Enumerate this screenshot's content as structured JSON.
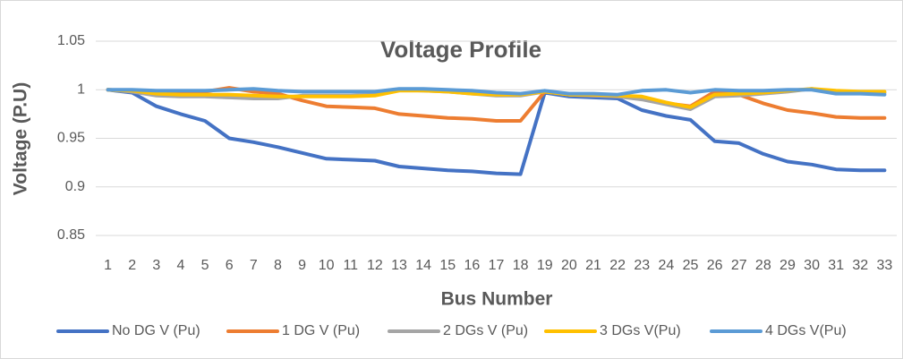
{
  "chart_data": {
    "type": "line",
    "title": "Voltage Profile",
    "x_label": "Bus Number",
    "y_label": "Voltage (P.U)",
    "categories": [
      "1",
      "2",
      "3",
      "4",
      "5",
      "6",
      "7",
      "8",
      "9",
      "10",
      "11",
      "12",
      "13",
      "14",
      "15",
      "16",
      "17",
      "18",
      "19",
      "20",
      "21",
      "22",
      "23",
      "24",
      "25",
      "26",
      "27",
      "28",
      "29",
      "30",
      "31",
      "32",
      "33"
    ],
    "series": [
      {
        "name": "No DG V (Pu)",
        "color": "#4472c4",
        "values": [
          1,
          0.997,
          0.983,
          0.975,
          0.968,
          0.95,
          0.946,
          0.941,
          0.935,
          0.929,
          0.928,
          0.927,
          0.921,
          0.919,
          0.917,
          0.916,
          0.914,
          0.913,
          0.997,
          0.993,
          0.992,
          0.991,
          0.979,
          0.973,
          0.969,
          0.947,
          0.945,
          0.934,
          0.926,
          0.923,
          0.918,
          0.917,
          0.917
        ]
      },
      {
        "name": "1 DG V (Pu)",
        "color": "#ed7d31",
        "values": [
          1,
          0.999,
          0.997,
          0.997,
          0.998,
          1.002,
          0.998,
          0.996,
          0.989,
          0.983,
          0.982,
          0.981,
          0.975,
          0.973,
          0.971,
          0.97,
          0.968,
          0.968,
          0.998,
          0.995,
          0.994,
          0.993,
          0.992,
          0.986,
          0.983,
          0.998,
          0.995,
          0.986,
          0.979,
          0.976,
          0.972,
          0.971,
          0.971
        ]
      },
      {
        "name": "2 DGs V (Pu)",
        "color": "#a5a5a5",
        "values": [
          1,
          0.998,
          0.994,
          0.993,
          0.993,
          0.992,
          0.991,
          0.991,
          0.994,
          0.994,
          0.994,
          0.995,
          1.0,
          0.999,
          0.998,
          0.996,
          0.994,
          0.994,
          0.998,
          0.995,
          0.994,
          0.993,
          0.99,
          0.985,
          0.98,
          0.993,
          0.994,
          0.996,
          0.998,
          1.001,
          0.997,
          0.997,
          0.997
        ]
      },
      {
        "name": "3 DGs V(Pu)",
        "color": "#ffc000",
        "values": [
          1,
          0.999,
          0.996,
          0.995,
          0.995,
          0.995,
          0.994,
          0.993,
          0.993,
          0.993,
          0.993,
          0.994,
          0.999,
          0.999,
          0.998,
          0.996,
          0.995,
          0.995,
          0.998,
          0.995,
          0.995,
          0.994,
          0.993,
          0.987,
          0.982,
          0.995,
          0.996,
          0.997,
          0.999,
          1.001,
          0.999,
          0.998,
          0.998
        ]
      },
      {
        "name": "4 DGs V(Pu)",
        "color": "#5b9bd5",
        "values": [
          1,
          1,
          0.999,
          0.999,
          0.999,
          1.0,
          1.001,
          0.999,
          0.998,
          0.998,
          0.998,
          0.998,
          1.001,
          1.001,
          1.0,
          0.999,
          0.997,
          0.996,
          0.999,
          0.996,
          0.996,
          0.995,
          0.999,
          1.0,
          0.997,
          1.0,
          0.999,
          0.999,
          1.0,
          1.0,
          0.996,
          0.996,
          0.995
        ]
      }
    ],
    "ylim": [
      0.85,
      1.05
    ],
    "yticks": [
      0.85,
      0.9,
      0.95,
      1,
      1.05
    ],
    "grid": true,
    "legend": "bottom"
  }
}
